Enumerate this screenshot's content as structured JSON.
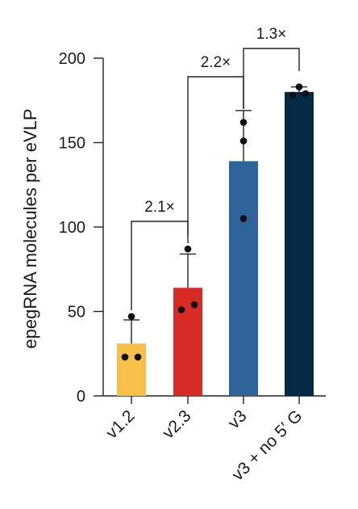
{
  "chart_data": {
    "type": "bar",
    "title": "",
    "xlabel": "",
    "ylabel": "epegRNA molecules per eVLP",
    "ylim": [
      0,
      200
    ],
    "yticks": [
      0,
      50,
      100,
      150,
      200
    ],
    "ytick_labels": [
      "0",
      "50",
      "100",
      "150",
      "200"
    ],
    "categories": [
      "v1.2",
      "v2.3",
      "v3",
      "v3 + no 5′ G"
    ],
    "values": [
      31,
      64,
      139,
      180
    ],
    "errors": [
      14,
      20,
      30,
      3
    ],
    "points": [
      [
        23,
        23,
        47
      ],
      [
        51,
        54,
        87
      ],
      [
        105,
        151,
        162
      ],
      [
        178,
        179,
        183
      ]
    ],
    "colors": [
      "#F8BF49",
      "#D72B25",
      "#2E6499",
      "#052A45"
    ],
    "comparisons": [
      {
        "from": "v1.2",
        "to": "v2.3",
        "label": "2.1×"
      },
      {
        "from": "v2.3",
        "to": "v3",
        "label": "2.2×"
      },
      {
        "from": "v3",
        "to": "v3 + no 5′ G",
        "label": "1.3×"
      }
    ],
    "grid": false,
    "legend": "none"
  }
}
